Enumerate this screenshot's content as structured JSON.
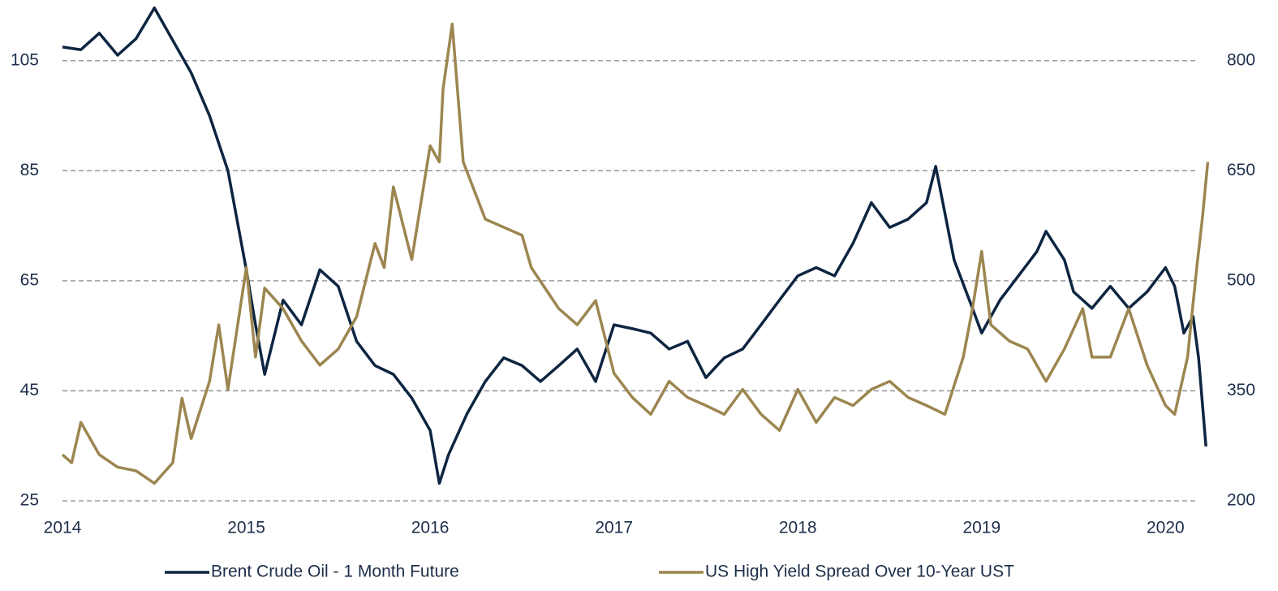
{
  "chart_data": {
    "type": "line",
    "xlim": [
      2014,
      2020.25
    ],
    "xticks": [
      2014,
      2015,
      2016,
      2017,
      2018,
      2019,
      2020
    ],
    "ylim": [
      25,
      115
    ],
    "yticks": [
      25,
      45,
      65,
      85,
      105
    ],
    "y2lim": [
      200,
      875
    ],
    "y2ticks": [
      200,
      350,
      500,
      650,
      800
    ],
    "grid": true,
    "legend": "bottom",
    "series": [
      {
        "name": "Brent Crude Oil - 1 Month Future",
        "color": "#0d2541",
        "axis": "y",
        "x": [
          2014.0,
          2014.1,
          2014.2,
          2014.3,
          2014.4,
          2014.5,
          2014.6,
          2014.7,
          2014.8,
          2014.9,
          2015.0,
          2015.05,
          2015.1,
          2015.2,
          2015.3,
          2015.4,
          2015.5,
          2015.6,
          2015.7,
          2015.8,
          2015.9,
          2016.0,
          2016.05,
          2016.1,
          2016.2,
          2016.3,
          2016.4,
          2016.5,
          2016.6,
          2016.7,
          2016.8,
          2016.9,
          2017.0,
          2017.1,
          2017.2,
          2017.3,
          2017.4,
          2017.5,
          2017.6,
          2017.7,
          2017.8,
          2017.9,
          2018.0,
          2018.1,
          2018.2,
          2018.3,
          2018.4,
          2018.5,
          2018.6,
          2018.7,
          2018.75,
          2018.85,
          2018.95,
          2019.0,
          2019.1,
          2019.2,
          2019.3,
          2019.35,
          2019.45,
          2019.5,
          2019.6,
          2019.7,
          2019.8,
          2019.9,
          2020.0,
          2020.05,
          2020.1,
          2020.15,
          2020.18,
          2020.22
        ],
        "values": [
          107.5,
          107,
          110,
          106,
          109,
          114.6,
          108.7,
          102.8,
          95,
          85,
          67,
          57,
          48,
          61.5,
          57,
          67,
          64,
          54,
          49.6,
          48,
          43.7,
          37.8,
          28.2,
          33.4,
          40.8,
          46.7,
          51,
          49.6,
          46.7,
          49.6,
          52.6,
          46.7,
          57,
          56.3,
          55.5,
          52.6,
          54,
          47.4,
          51,
          52.6,
          57,
          61.5,
          65.9,
          67.4,
          65.9,
          71.8,
          79.2,
          74.7,
          76.2,
          79.2,
          85.8,
          68.8,
          60,
          55.5,
          61.5,
          65.9,
          70.3,
          74,
          68.8,
          63,
          60,
          64,
          60,
          63,
          67.4,
          64,
          55.5,
          58.5,
          51,
          34.9
        ]
      },
      {
        "name": "US High Yield Spread Over 10-Year UST",
        "color": "#9c8650",
        "axis": "y2",
        "x": [
          2014.0,
          2014.05,
          2014.1,
          2014.2,
          2014.3,
          2014.4,
          2014.5,
          2014.6,
          2014.65,
          2014.7,
          2014.8,
          2014.85,
          2014.9,
          2015.0,
          2015.05,
          2015.1,
          2015.2,
          2015.3,
          2015.4,
          2015.5,
          2015.6,
          2015.7,
          2015.75,
          2015.8,
          2015.9,
          2016.0,
          2016.05,
          2016.07,
          2016.12,
          2016.18,
          2016.3,
          2016.4,
          2016.5,
          2016.55,
          2016.7,
          2016.8,
          2016.9,
          2017.0,
          2017.1,
          2017.2,
          2017.3,
          2017.4,
          2017.5,
          2017.6,
          2017.7,
          2017.8,
          2017.9,
          2018.0,
          2018.1,
          2018.2,
          2018.3,
          2018.4,
          2018.5,
          2018.6,
          2018.7,
          2018.8,
          2018.9,
          2018.95,
          2019.0,
          2019.05,
          2019.15,
          2019.25,
          2019.35,
          2019.45,
          2019.55,
          2019.6,
          2019.7,
          2019.8,
          2019.9,
          2020.0,
          2020.05,
          2020.12,
          2020.17,
          2020.2,
          2020.23
        ],
        "values": [
          263,
          252,
          307,
          263,
          246,
          241,
          224,
          252,
          340,
          285,
          363,
          440,
          352,
          518,
          396,
          490,
          462,
          418,
          385,
          407,
          451,
          551,
          518,
          628,
          529,
          684,
          662,
          761,
          850,
          662,
          584,
          573,
          562,
          518,
          462,
          440,
          473,
          374,
          341,
          318,
          363,
          341,
          330,
          318,
          352,
          318,
          296,
          352,
          307,
          341,
          330,
          352,
          363,
          341,
          330,
          318,
          396,
          462,
          540,
          440,
          418,
          407,
          363,
          407,
          462,
          396,
          396,
          462,
          385,
          330,
          318,
          396,
          518,
          584,
          662
        ]
      }
    ]
  }
}
